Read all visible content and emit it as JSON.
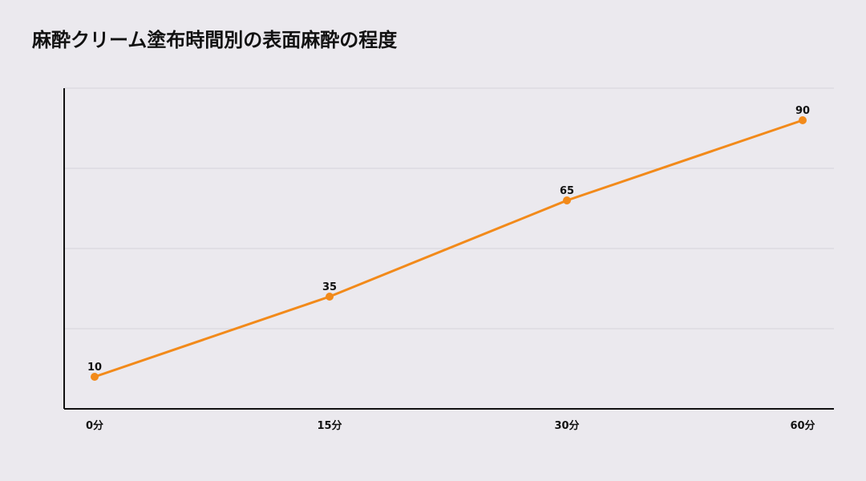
{
  "chart_data": {
    "type": "line",
    "title": "麻酔クリーム塗布時間別の表面麻酔の程度",
    "categories": [
      "0分",
      "15分",
      "30分",
      "60分"
    ],
    "series": [
      {
        "values": [
          10,
          35,
          65,
          90
        ]
      }
    ],
    "ylim": [
      0,
      100
    ],
    "grid": true,
    "legend": "none",
    "colors": {
      "line": "#f28a1a",
      "grid": "#d6d4da",
      "axis": "#111111"
    }
  }
}
